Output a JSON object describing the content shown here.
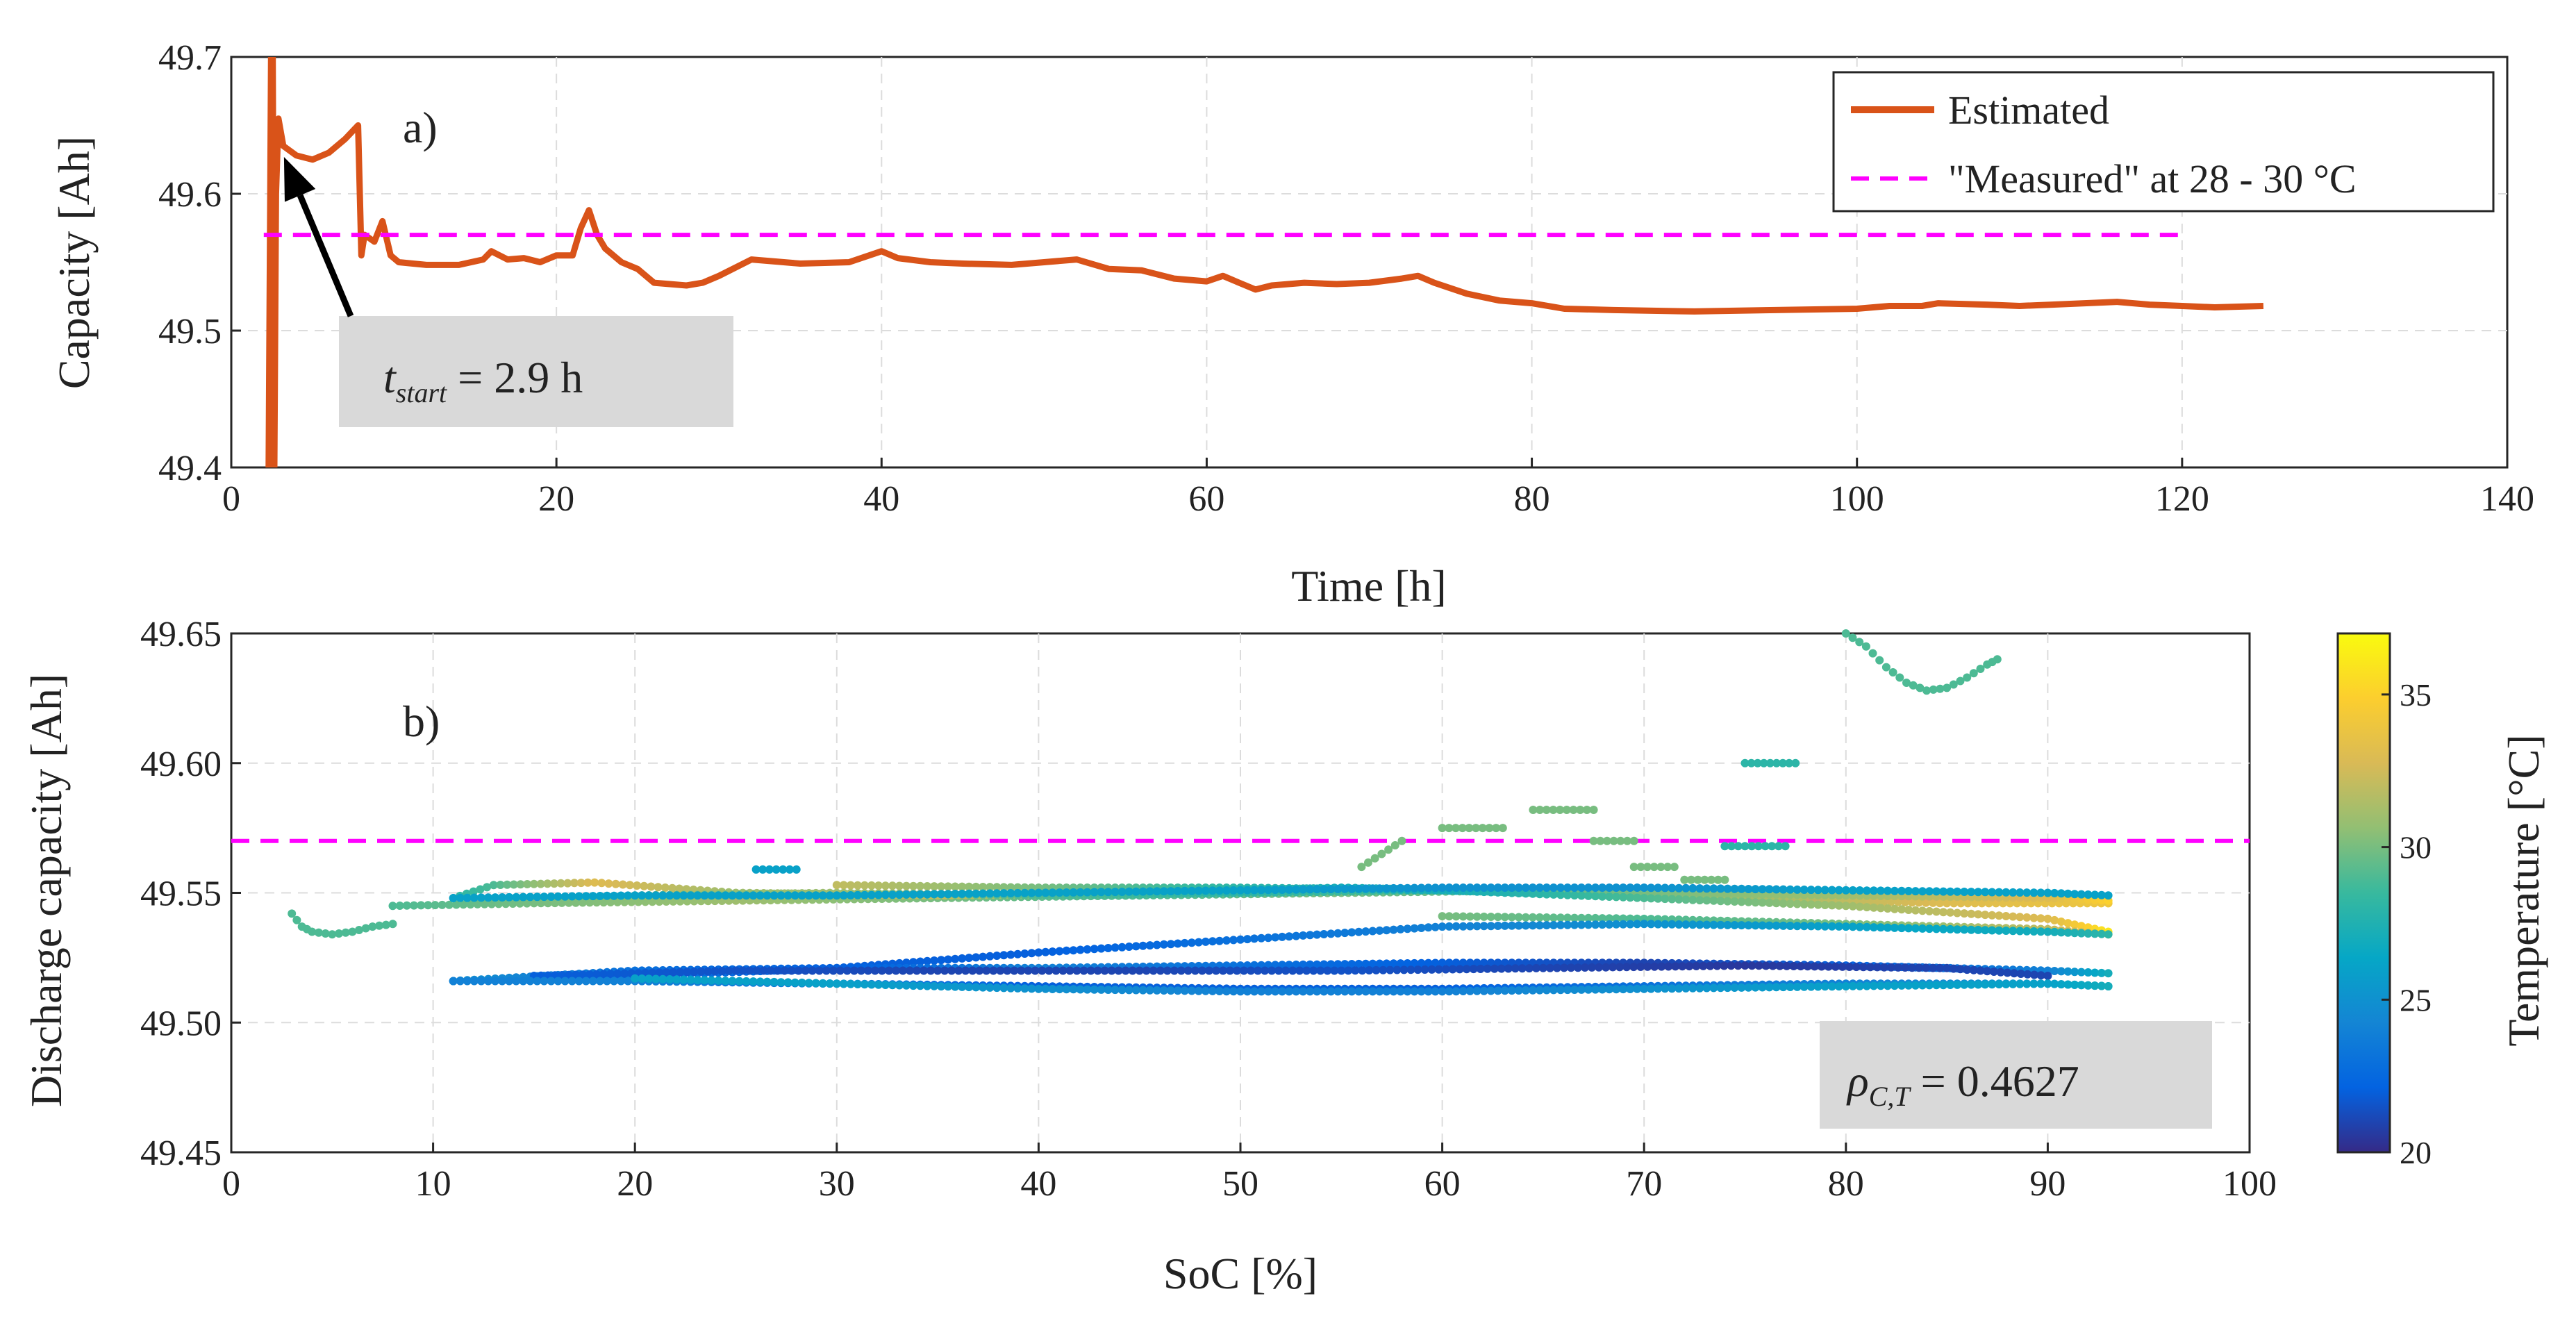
{
  "chart_data": [
    {
      "id": "a",
      "type": "line",
      "panel_label": "a)",
      "xlabel": "Time [h]",
      "ylabel": "Capacity [Ah]",
      "xlim": [
        0,
        140
      ],
      "ylim": [
        49.4,
        49.7
      ],
      "xticks": [
        0,
        20,
        40,
        60,
        80,
        100,
        120,
        140
      ],
      "yticks": [
        49.4,
        49.5,
        49.6,
        49.7
      ],
      "grid": true,
      "legend_position": "top-right",
      "series": [
        {
          "name": "Estimated",
          "style": "solid",
          "color": "#D95319",
          "x": [
            2.3,
            2.45,
            2.55,
            2.65,
            2.75,
            2.9,
            3.2,
            4.0,
            5.0,
            6.0,
            7.0,
            7.8,
            8.0,
            8.2,
            8.8,
            9.3,
            9.8,
            10.3,
            12,
            14,
            15.5,
            16,
            17,
            18,
            19,
            20,
            21,
            21.5,
            22,
            22.5,
            23,
            24,
            25,
            26,
            28,
            29,
            30,
            32,
            35,
            38,
            40,
            41,
            43,
            45,
            48,
            50,
            52,
            54,
            56,
            58,
            60,
            61,
            62,
            63,
            64,
            66,
            68,
            70,
            72,
            73,
            74,
            76,
            78,
            80,
            82,
            85,
            90,
            95,
            100,
            102,
            104,
            105,
            108,
            110,
            112,
            114,
            116,
            118,
            120,
            122,
            125
          ],
          "y": [
            49.4,
            49.7,
            49.7,
            49.4,
            49.6,
            49.655,
            49.635,
            49.628,
            49.625,
            49.63,
            49.64,
            49.65,
            49.555,
            49.57,
            49.565,
            49.58,
            49.555,
            49.55,
            49.548,
            49.548,
            49.552,
            49.558,
            49.552,
            49.553,
            49.55,
            49.555,
            49.555,
            49.575,
            49.588,
            49.57,
            49.56,
            49.55,
            49.545,
            49.535,
            49.533,
            49.535,
            49.54,
            49.552,
            49.549,
            49.55,
            49.558,
            49.553,
            49.55,
            49.549,
            49.548,
            49.55,
            49.552,
            49.545,
            49.544,
            49.538,
            49.536,
            49.54,
            49.535,
            49.53,
            49.533,
            49.535,
            49.534,
            49.535,
            49.538,
            49.54,
            49.535,
            49.527,
            49.522,
            49.52,
            49.516,
            49.515,
            49.514,
            49.515,
            49.516,
            49.518,
            49.518,
            49.52,
            49.519,
            49.518,
            49.519,
            49.52,
            49.521,
            49.519,
            49.518,
            49.517,
            49.518
          ]
        },
        {
          "name": "\"Measured\" at 28 - 30 °C",
          "style": "dashed",
          "color": "#FF00FF",
          "x": [
            2,
            120
          ],
          "y": [
            49.57,
            49.57
          ]
        }
      ],
      "annotation": {
        "text_main": "t",
        "text_sub": "start",
        "text_rest": " = 2.9 h",
        "arrow_to": [
          2.9,
          49.632
        ]
      }
    },
    {
      "id": "b",
      "type": "scatter",
      "panel_label": "b)",
      "xlabel": "SoC [%]",
      "ylabel": "Discharge capacity [Ah]",
      "xlim": [
        0,
        100
      ],
      "ylim": [
        49.45,
        49.65
      ],
      "xticks": [
        0,
        10,
        20,
        30,
        40,
        50,
        60,
        70,
        80,
        90,
        100
      ],
      "yticks": [
        49.45,
        49.5,
        49.55,
        49.6,
        49.65
      ],
      "grid": true,
      "reference_line": {
        "y": 49.57,
        "color": "#FF00FF",
        "style": "dashed"
      },
      "colorbar": {
        "label": "Temperature [°C]",
        "range": [
          20,
          37
        ],
        "ticks": [
          20,
          25,
          30,
          35
        ],
        "colormap": "parula"
      },
      "annotation": {
        "text_main": "ρ",
        "text_sub": "C,T",
        "text_rest": " = 0.4627"
      },
      "traces": [
        {
          "x": [
            3,
            3.5,
            4,
            5,
            6,
            7,
            8
          ],
          "y": [
            49.542,
            49.537,
            49.535,
            49.534,
            49.535,
            49.537,
            49.538
          ],
          "temp": [
            29,
            29,
            29,
            29,
            29,
            29,
            29
          ]
        },
        {
          "x": [
            8,
            15,
            25,
            35,
            45,
            55,
            65,
            75,
            85,
            93
          ],
          "y": [
            49.545,
            49.546,
            49.547,
            49.548,
            49.549,
            49.55,
            49.551,
            49.549,
            49.547,
            49.546
          ],
          "temp": [
            29,
            30,
            31,
            30,
            29,
            30,
            29,
            31,
            32,
            36
          ]
        },
        {
          "x": [
            11,
            13,
            18,
            25,
            35,
            45,
            55,
            65,
            75,
            85,
            93
          ],
          "y": [
            49.548,
            49.553,
            49.554,
            49.55,
            49.549,
            49.55,
            49.552,
            49.55,
            49.548,
            49.546,
            49.546
          ],
          "temp": [
            28,
            29,
            33,
            31,
            32,
            30,
            27,
            29,
            31,
            33,
            34
          ]
        },
        {
          "x": [
            20,
            30,
            40,
            50,
            60,
            70,
            80,
            90,
            93
          ],
          "y": [
            49.549,
            49.55,
            49.549,
            49.55,
            49.551,
            49.55,
            49.549,
            49.548,
            49.547
          ],
          "temp": [
            30,
            31,
            29,
            28,
            29,
            30,
            31,
            33,
            35
          ]
        },
        {
          "x": [
            30,
            40,
            50,
            60,
            70,
            80,
            90,
            93
          ],
          "y": [
            49.553,
            49.552,
            49.552,
            49.551,
            49.548,
            49.545,
            49.54,
            49.535
          ],
          "temp": [
            32,
            30,
            28,
            27,
            29,
            31,
            33,
            36
          ]
        },
        {
          "x": [
            60,
            70,
            80,
            90,
            93
          ],
          "y": [
            49.541,
            49.54,
            49.538,
            49.536,
            49.534
          ],
          "temp": [
            30,
            29,
            30,
            32,
            34
          ]
        },
        {
          "x": [
            11,
            20,
            30,
            40,
            50,
            60,
            70,
            80,
            90,
            93
          ],
          "y": [
            49.516,
            49.518,
            49.521,
            49.527,
            49.532,
            49.537,
            49.538,
            49.537,
            49.535,
            49.534
          ],
          "temp": [
            24,
            23,
            22,
            22,
            23,
            24,
            25,
            26,
            27,
            28
          ]
        },
        {
          "x": [
            11,
            20,
            30,
            40,
            50,
            60,
            70,
            80,
            90,
            93
          ],
          "y": [
            49.516,
            49.52,
            49.521,
            49.521,
            49.522,
            49.523,
            49.523,
            49.522,
            49.52,
            49.519
          ],
          "temp": [
            25,
            23,
            22,
            24,
            23,
            22,
            21,
            22,
            24,
            27
          ]
        },
        {
          "x": [
            15,
            25,
            35,
            45,
            55,
            65,
            75,
            85,
            90
          ],
          "y": [
            49.518,
            49.52,
            49.52,
            49.52,
            49.52,
            49.521,
            49.522,
            49.521,
            49.518
          ],
          "temp": [
            22,
            21.5,
            21,
            21,
            21.5,
            21,
            20.5,
            21,
            21
          ]
        },
        {
          "x": [
            11,
            20,
            30,
            40,
            50,
            60,
            70,
            80,
            90,
            93
          ],
          "y": [
            49.516,
            49.516,
            49.515,
            49.514,
            49.513,
            49.513,
            49.514,
            49.515,
            49.515,
            49.514
          ],
          "temp": [
            24,
            24,
            23,
            22,
            22,
            22,
            23,
            24,
            25,
            26
          ]
        },
        {
          "x": [
            20,
            30,
            40,
            50,
            60,
            70,
            80,
            90,
            93
          ],
          "y": [
            49.517,
            49.515,
            49.513,
            49.512,
            49.512,
            49.513,
            49.514,
            49.515,
            49.514
          ],
          "temp": [
            26,
            26,
            25,
            24,
            24,
            25,
            26,
            26,
            27
          ]
        },
        {
          "x": [
            11,
            20,
            30,
            40,
            50,
            60,
            70,
            80,
            90,
            93
          ],
          "y": [
            49.548,
            49.549,
            49.549,
            49.55,
            49.551,
            49.552,
            49.552,
            49.551,
            49.55,
            49.549
          ],
          "temp": [
            26,
            26,
            26,
            26,
            26,
            25,
            25,
            26,
            26,
            26
          ]
        },
        {
          "x": [
            80,
            81,
            82,
            83,
            84,
            85,
            86,
            87,
            87.5
          ],
          "y": [
            49.65,
            49.645,
            49.637,
            49.631,
            49.628,
            49.629,
            49.633,
            49.638,
            49.64
          ],
          "temp": [
            29,
            29,
            29,
            29,
            29,
            29,
            29,
            29,
            29
          ]
        },
        {
          "x": [
            75,
            77.5
          ],
          "y": [
            49.6,
            49.6
          ],
          "temp": [
            28,
            28
          ]
        },
        {
          "x": [
            56,
            57,
            58
          ],
          "y": [
            49.56,
            49.565,
            49.57
          ],
          "temp": [
            30,
            30,
            30
          ]
        },
        {
          "x": [
            60,
            63
          ],
          "y": [
            49.575,
            49.575
          ],
          "temp": [
            30,
            30
          ]
        },
        {
          "x": [
            64.5,
            67.5
          ],
          "y": [
            49.582,
            49.582
          ],
          "temp": [
            30,
            30
          ]
        },
        {
          "x": [
            67.5,
            69.5
          ],
          "y": [
            49.57,
            49.57
          ],
          "temp": [
            30,
            30
          ]
        },
        {
          "x": [
            69.5,
            71.5
          ],
          "y": [
            49.56,
            49.56
          ],
          "temp": [
            30,
            30
          ]
        },
        {
          "x": [
            72,
            74
          ],
          "y": [
            49.555,
            49.555
          ],
          "temp": [
            30,
            30
          ]
        },
        {
          "x": [
            74,
            77
          ],
          "y": [
            49.568,
            49.568
          ],
          "temp": [
            28,
            28
          ]
        },
        {
          "x": [
            26,
            28
          ],
          "y": [
            49.559,
            49.559
          ],
          "temp": [
            26,
            26
          ]
        }
      ]
    }
  ]
}
